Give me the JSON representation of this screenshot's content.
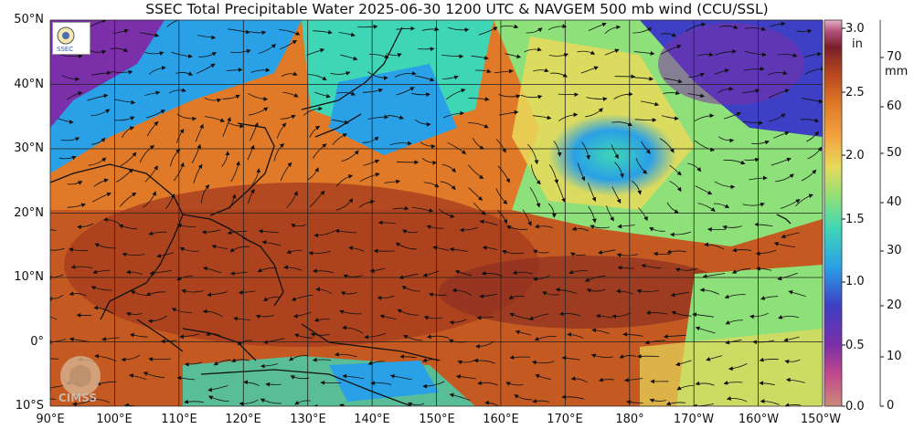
{
  "title": "SSEC Total Precipitable Water  2025-06-30 1200 UTC & NAVGEM 500 mb wind (CCU/SSL)",
  "lat_labels": [
    "50°N",
    "40°N",
    "30°N",
    "20°N",
    "10°N",
    "0°",
    "10°S"
  ],
  "lon_labels": [
    "90°E",
    "100°E",
    "110°E",
    "120°E",
    "130°E",
    "140°E",
    "150°E",
    "160°E",
    "170°E",
    "180°",
    "170°W",
    "160°W",
    "150°W"
  ],
  "colorbar": {
    "unit_in": "in",
    "unit_mm": "mm",
    "in_ticks": [
      "3.0",
      "2.5",
      "2.0",
      "1.5",
      "1.0",
      "0.5",
      "0.0"
    ],
    "mm_ticks": [
      "70",
      "60",
      "50",
      "40",
      "30",
      "20",
      "10",
      "0"
    ],
    "colors": [
      "#c98a78",
      "#c44a8c",
      "#7b2fa8",
      "#3d3fc4",
      "#2aa0e6",
      "#3fd6b6",
      "#8ee07a",
      "#e7d95a",
      "#f3a23f",
      "#e07a28",
      "#b8471f",
      "#7a1f2a",
      "#b04f7a",
      "#e8b0c8"
    ]
  },
  "logos": {
    "ssec": "SSEC",
    "cimss": "CIMSS"
  },
  "map": {
    "lat_range": [
      -10,
      50
    ],
    "lon_range": [
      90,
      210
    ],
    "grid": true
  }
}
